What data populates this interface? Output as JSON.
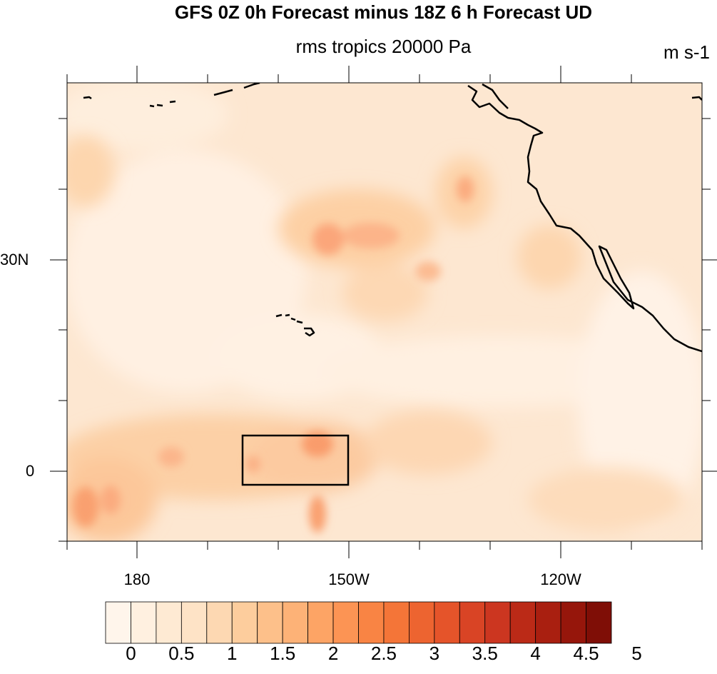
{
  "title": "GFS 0Z 0h Forecast minus 18Z 6 h Forecast UD",
  "subtitle": "rms tropics 20000 Pa",
  "units": "m s-1",
  "lat_labels": [
    "30N",
    "0"
  ],
  "lon_labels": [
    "180",
    "150W",
    "120W"
  ],
  "colorbar": {
    "labels": [
      "0",
      "0.5",
      "1",
      "1.5",
      "2",
      "2.5",
      "3",
      "3.5",
      "4",
      "4.5",
      "5"
    ],
    "colors": [
      "#fff5eb",
      "#fff0e0",
      "#feead3",
      "#fee3c6",
      "#fdd8b2",
      "#fdcd9d",
      "#fdc08a",
      "#fdb277",
      "#fda465",
      "#fc9454",
      "#f98444",
      "#f47538",
      "#ed6430",
      "#e5542a",
      "#d94425",
      "#cc3620",
      "#bb2a17",
      "#a91f10",
      "#96160b",
      "#7f0e06"
    ]
  },
  "colors": {
    "background_field": "#fde6cf",
    "coastline": "#000000"
  }
}
